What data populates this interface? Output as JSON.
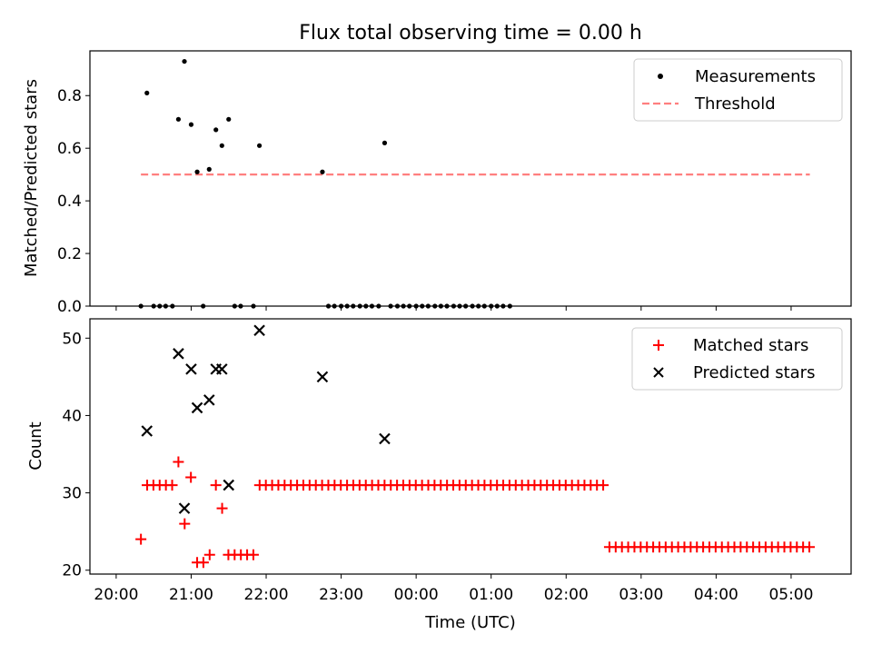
{
  "chart_data": [
    {
      "type": "scatter",
      "title": "Flux total observing time = 0.00 h",
      "xlabel": "",
      "ylabel": "Matched/Predicted stars",
      "xlim": [
        -0.35,
        9.8
      ],
      "ylim": [
        0,
        0.97
      ],
      "yticks": [
        0.0,
        0.2,
        0.4,
        0.6,
        0.8
      ],
      "ytick_labels": [
        "0.0",
        "0.2",
        "0.4",
        "0.6",
        "0.8"
      ],
      "legend": {
        "position": "top-right",
        "entries": [
          "Measurements",
          "Threshold"
        ]
      },
      "threshold": {
        "name": "Threshold",
        "value": 0.5,
        "x_start": 0.33,
        "x_end": 9.25,
        "color": "#ff7f7f"
      },
      "series": [
        {
          "name": "Measurements",
          "color": "#000000",
          "points": [
            [
              0.41,
              0.81
            ],
            [
              0.83,
              0.71
            ],
            [
              0.91,
              0.93
            ],
            [
              1.0,
              0.69
            ],
            [
              1.08,
              0.51
            ],
            [
              1.24,
              0.52
            ],
            [
              1.33,
              0.67
            ],
            [
              1.41,
              0.61
            ],
            [
              1.5,
              0.71
            ],
            [
              1.91,
              0.61
            ],
            [
              2.75,
              0.51
            ],
            [
              3.58,
              0.62
            ]
          ],
          "zero_points": [
            0.33,
            0.5,
            0.58,
            0.66,
            0.75,
            1.16,
            1.58,
            1.66,
            1.83,
            2.83,
            2.91,
            3.0,
            3.08,
            3.16,
            3.25,
            3.33,
            3.41,
            3.5,
            3.66,
            3.75,
            3.83,
            3.91,
            4.0,
            4.08,
            4.16,
            4.25,
            4.33,
            4.41,
            4.5,
            4.58,
            4.66,
            4.75,
            4.83,
            4.91,
            5.0,
            5.08,
            5.16,
            5.25
          ]
        }
      ]
    },
    {
      "type": "scatter",
      "title": "",
      "xlabel": "Time (UTC)",
      "ylabel": "Count",
      "xlim": [
        -0.35,
        9.8
      ],
      "ylim": [
        19.5,
        52.5
      ],
      "yticks": [
        20,
        30,
        40,
        50
      ],
      "ytick_labels": [
        "20",
        "30",
        "40",
        "50"
      ],
      "xticks": [
        0,
        1,
        2,
        3,
        4,
        5,
        6,
        7,
        8,
        9
      ],
      "xtick_labels": [
        "20:00",
        "21:00",
        "22:00",
        "23:00",
        "00:00",
        "01:00",
        "02:00",
        "03:00",
        "04:00",
        "05:00"
      ],
      "legend": {
        "position": "top-right",
        "entries": [
          "Matched stars",
          "Predicted stars"
        ]
      },
      "series": [
        {
          "name": "Matched stars",
          "marker": "plus",
          "color": "#ff0000",
          "x_start": 0.33,
          "x_step": 0.0833,
          "values": [
            24,
            31,
            31,
            31,
            31,
            31,
            34,
            26,
            32,
            21,
            21,
            22,
            31,
            28,
            22,
            22,
            22,
            22,
            22,
            31,
            31,
            31,
            31,
            31,
            31,
            31,
            31,
            31,
            31,
            31,
            31,
            31,
            31,
            31,
            31,
            31,
            31,
            31,
            31,
            31,
            31,
            31,
            31,
            31,
            31,
            31,
            31,
            31,
            31,
            31,
            31,
            31,
            31,
            31,
            31,
            31,
            31,
            31,
            31,
            31,
            31,
            31,
            31,
            31,
            31,
            31,
            31,
            31,
            31,
            31,
            31,
            31,
            31,
            31,
            31,
            23,
            23,
            23,
            23,
            23,
            23,
            23,
            23,
            23,
            23,
            23,
            23,
            23,
            23,
            23,
            23,
            23,
            23,
            23,
            23,
            23,
            23,
            23,
            23,
            23,
            23,
            23,
            23,
            23,
            23,
            23,
            23,
            23
          ]
        },
        {
          "name": "Predicted stars",
          "marker": "x",
          "color": "#000000",
          "points": [
            [
              0.41,
              38
            ],
            [
              0.83,
              48
            ],
            [
              0.91,
              28
            ],
            [
              1.0,
              46
            ],
            [
              1.08,
              41
            ],
            [
              1.24,
              42
            ],
            [
              1.33,
              46
            ],
            [
              1.41,
              46
            ],
            [
              1.5,
              31
            ],
            [
              1.91,
              51
            ],
            [
              2.75,
              45
            ],
            [
              3.58,
              37
            ]
          ]
        }
      ]
    }
  ]
}
